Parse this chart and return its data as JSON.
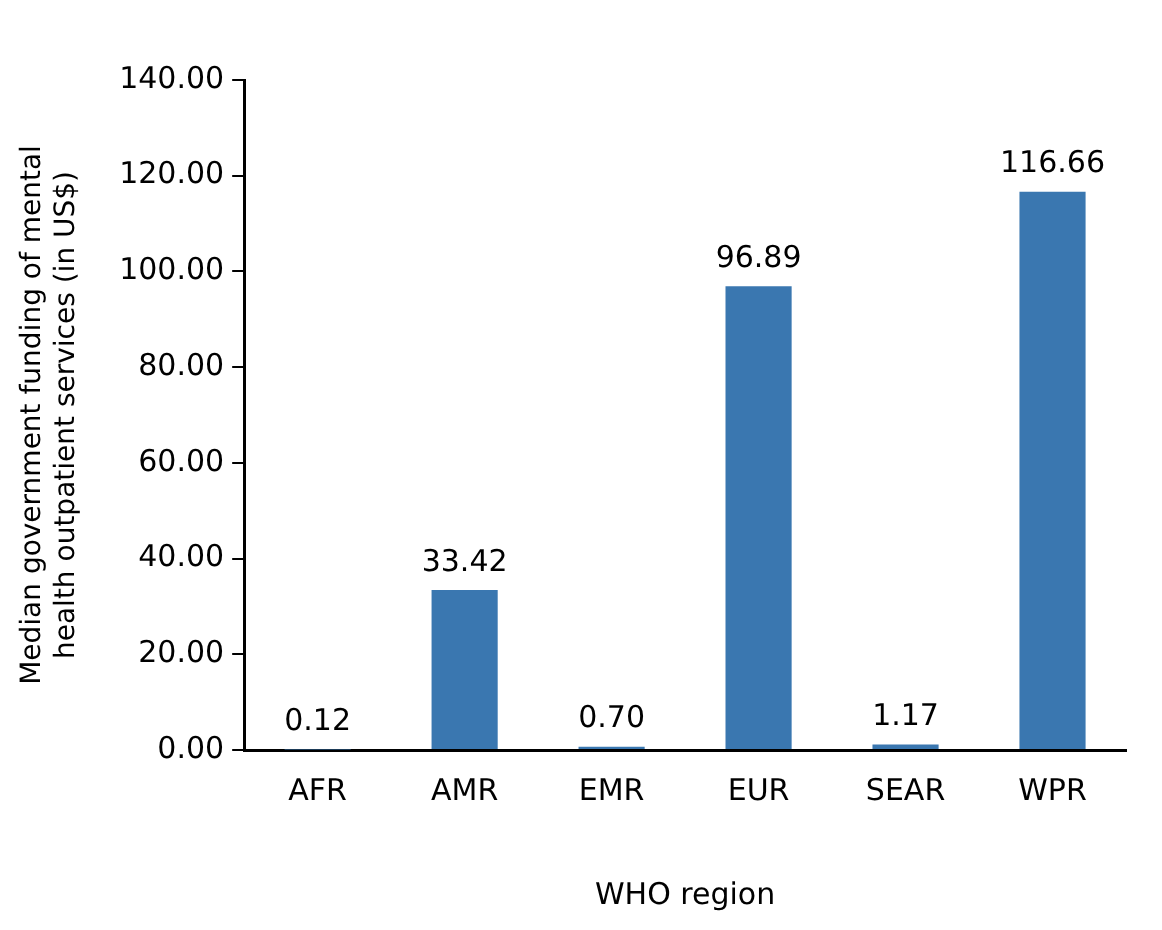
{
  "chart_data": {
    "type": "bar",
    "xlabel": "WHO region",
    "ylabel": "Median government funding of mental health outpatient services (in US$)",
    "categories": [
      "AFR",
      "AMR",
      "EMR",
      "EUR",
      "SEAR",
      "WPR"
    ],
    "values": [
      0.12,
      33.42,
      0.7,
      96.89,
      1.17,
      116.66
    ],
    "value_labels": [
      "0.12",
      "33.42",
      "0.70",
      "96.89",
      "1.17",
      "116.66"
    ],
    "color": "#3a77b0",
    "ylim": [
      0,
      140
    ],
    "yticks": [
      {
        "value": 0,
        "label": "0.00"
      },
      {
        "value": 20,
        "label": "20.00"
      },
      {
        "value": 40,
        "label": "40.00"
      },
      {
        "value": 60,
        "label": "60.00"
      },
      {
        "value": 80,
        "label": "80.00"
      },
      {
        "value": 100,
        "label": "100.00"
      },
      {
        "value": 120,
        "label": "120.00"
      },
      {
        "value": 140,
        "label": "140.00"
      }
    ],
    "grid": false,
    "legend": false
  }
}
